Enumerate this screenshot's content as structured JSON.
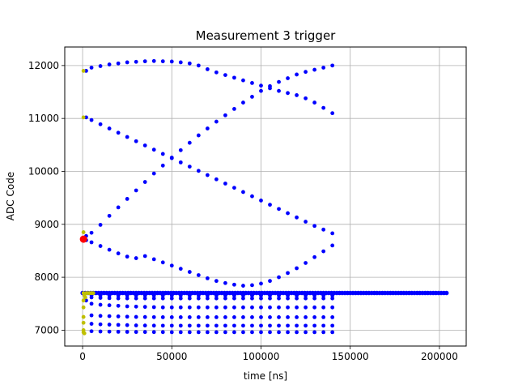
{
  "chart_data": {
    "type": "scatter",
    "title": "Measurement 3 trigger",
    "xlabel": "time [ns]",
    "ylabel": "ADC Code",
    "xlim": [
      -10000,
      215000
    ],
    "ylim": [
      6700,
      12350
    ],
    "xticks": [
      0,
      50000,
      100000,
      150000,
      200000
    ],
    "yticks": [
      7000,
      8000,
      9000,
      10000,
      11000,
      12000
    ],
    "grid": true,
    "colors": {
      "main": "#0000ff",
      "start": "#bfbf00",
      "marker": "#ff0000",
      "grid": "#b0b0b0"
    },
    "series": [
      {
        "marker": "dot",
        "color": "#0000ff",
        "points": [
          [
            2000,
            11900
          ],
          [
            5000,
            11960
          ],
          [
            10000,
            11990
          ],
          [
            15000,
            12020
          ],
          [
            20000,
            12040
          ],
          [
            25000,
            12060
          ],
          [
            30000,
            12070
          ],
          [
            35000,
            12080
          ],
          [
            40000,
            12085
          ],
          [
            45000,
            12080
          ],
          [
            50000,
            12075
          ],
          [
            55000,
            12060
          ],
          [
            60000,
            12040
          ],
          [
            65000,
            12000
          ],
          [
            70000,
            11930
          ],
          [
            75000,
            11870
          ],
          [
            80000,
            11820
          ],
          [
            85000,
            11770
          ],
          [
            90000,
            11720
          ],
          [
            95000,
            11670
          ],
          [
            100000,
            11620
          ],
          [
            105000,
            11570
          ],
          [
            110000,
            11520
          ],
          [
            115000,
            11480
          ],
          [
            120000,
            11440
          ],
          [
            125000,
            11380
          ],
          [
            130000,
            11300
          ],
          [
            135000,
            11200
          ],
          [
            140000,
            11100
          ],
          [
            2000,
            11020
          ],
          [
            5000,
            10970
          ],
          [
            10000,
            10890
          ],
          [
            15000,
            10810
          ],
          [
            20000,
            10730
          ],
          [
            25000,
            10650
          ],
          [
            30000,
            10570
          ],
          [
            35000,
            10490
          ],
          [
            40000,
            10410
          ],
          [
            45000,
            10330
          ],
          [
            50000,
            10250
          ],
          [
            55000,
            10170
          ],
          [
            60000,
            10090
          ],
          [
            65000,
            10010
          ],
          [
            70000,
            9930
          ],
          [
            75000,
            9850
          ],
          [
            80000,
            9770
          ],
          [
            85000,
            9690
          ],
          [
            90000,
            9610
          ],
          [
            95000,
            9530
          ],
          [
            100000,
            9450
          ],
          [
            105000,
            9370
          ],
          [
            110000,
            9290
          ],
          [
            115000,
            9210
          ],
          [
            120000,
            9130
          ],
          [
            125000,
            9050
          ],
          [
            130000,
            8970
          ],
          [
            135000,
            8900
          ],
          [
            140000,
            8830
          ],
          [
            2000,
            8780
          ],
          [
            5000,
            8840
          ],
          [
            10000,
            8990
          ],
          [
            15000,
            9160
          ],
          [
            20000,
            9320
          ],
          [
            25000,
            9480
          ],
          [
            30000,
            9640
          ],
          [
            35000,
            9800
          ],
          [
            40000,
            9960
          ],
          [
            45000,
            10110
          ],
          [
            50000,
            10260
          ],
          [
            55000,
            10400
          ],
          [
            60000,
            10540
          ],
          [
            65000,
            10680
          ],
          [
            70000,
            10810
          ],
          [
            75000,
            10940
          ],
          [
            80000,
            11060
          ],
          [
            85000,
            11180
          ],
          [
            90000,
            11300
          ],
          [
            95000,
            11410
          ],
          [
            100000,
            11520
          ],
          [
            105000,
            11610
          ],
          [
            110000,
            11690
          ],
          [
            115000,
            11760
          ],
          [
            120000,
            11830
          ],
          [
            125000,
            11880
          ],
          [
            130000,
            11920
          ],
          [
            135000,
            11960
          ],
          [
            140000,
            12000
          ],
          [
            2000,
            8700
          ],
          [
            5000,
            8660
          ],
          [
            10000,
            8590
          ],
          [
            15000,
            8520
          ],
          [
            20000,
            8450
          ],
          [
            25000,
            8390
          ],
          [
            30000,
            8360
          ],
          [
            35000,
            8400
          ],
          [
            40000,
            8340
          ],
          [
            45000,
            8280
          ],
          [
            50000,
            8220
          ],
          [
            55000,
            8160
          ],
          [
            60000,
            8100
          ],
          [
            65000,
            8040
          ],
          [
            70000,
            7980
          ],
          [
            75000,
            7930
          ],
          [
            80000,
            7890
          ],
          [
            85000,
            7860
          ],
          [
            90000,
            7840
          ],
          [
            95000,
            7850
          ],
          [
            100000,
            7880
          ],
          [
            105000,
            7930
          ],
          [
            110000,
            8000
          ],
          [
            115000,
            8080
          ],
          [
            120000,
            8170
          ],
          [
            125000,
            8270
          ],
          [
            130000,
            8380
          ],
          [
            135000,
            8490
          ],
          [
            140000,
            8600
          ],
          [
            2000,
            7560
          ],
          [
            5000,
            7500
          ],
          [
            10000,
            7480
          ],
          [
            15000,
            7470
          ],
          [
            20000,
            7460
          ],
          [
            25000,
            7450
          ],
          [
            30000,
            7445
          ],
          [
            35000,
            7440
          ],
          [
            40000,
            7435
          ],
          [
            45000,
            7430
          ],
          [
            50000,
            7430
          ],
          [
            55000,
            7430
          ],
          [
            60000,
            7430
          ],
          [
            65000,
            7430
          ],
          [
            70000,
            7430
          ],
          [
            75000,
            7430
          ],
          [
            80000,
            7430
          ],
          [
            85000,
            7430
          ],
          [
            90000,
            7430
          ],
          [
            95000,
            7430
          ],
          [
            100000,
            7430
          ],
          [
            105000,
            7430
          ],
          [
            110000,
            7430
          ],
          [
            115000,
            7430
          ],
          [
            120000,
            7430
          ],
          [
            125000,
            7430
          ],
          [
            130000,
            7430
          ],
          [
            135000,
            7430
          ],
          [
            140000,
            7430
          ],
          [
            5000,
            7280
          ],
          [
            10000,
            7270
          ],
          [
            15000,
            7265
          ],
          [
            20000,
            7260
          ],
          [
            25000,
            7255
          ],
          [
            30000,
            7250
          ],
          [
            35000,
            7248
          ],
          [
            40000,
            7246
          ],
          [
            45000,
            7245
          ],
          [
            50000,
            7245
          ],
          [
            55000,
            7245
          ],
          [
            60000,
            7245
          ],
          [
            65000,
            7245
          ],
          [
            70000,
            7245
          ],
          [
            75000,
            7245
          ],
          [
            80000,
            7245
          ],
          [
            85000,
            7245
          ],
          [
            90000,
            7245
          ],
          [
            95000,
            7245
          ],
          [
            100000,
            7245
          ],
          [
            105000,
            7245
          ],
          [
            110000,
            7245
          ],
          [
            115000,
            7245
          ],
          [
            120000,
            7245
          ],
          [
            125000,
            7245
          ],
          [
            130000,
            7245
          ],
          [
            135000,
            7245
          ],
          [
            140000,
            7245
          ],
          [
            5000,
            7120
          ],
          [
            10000,
            7110
          ],
          [
            15000,
            7105
          ],
          [
            20000,
            7100
          ],
          [
            25000,
            7095
          ],
          [
            30000,
            7090
          ],
          [
            35000,
            7088
          ],
          [
            40000,
            7086
          ],
          [
            45000,
            7085
          ],
          [
            50000,
            7085
          ],
          [
            55000,
            7085
          ],
          [
            60000,
            7085
          ],
          [
            65000,
            7085
          ],
          [
            70000,
            7085
          ],
          [
            75000,
            7085
          ],
          [
            80000,
            7085
          ],
          [
            85000,
            7085
          ],
          [
            90000,
            7085
          ],
          [
            95000,
            7085
          ],
          [
            100000,
            7085
          ],
          [
            105000,
            7085
          ],
          [
            110000,
            7085
          ],
          [
            115000,
            7085
          ],
          [
            120000,
            7085
          ],
          [
            125000,
            7085
          ],
          [
            130000,
            7085
          ],
          [
            135000,
            7085
          ],
          [
            140000,
            7085
          ],
          [
            5000,
            6980
          ],
          [
            10000,
            6975
          ],
          [
            15000,
            6972
          ],
          [
            20000,
            6970
          ],
          [
            25000,
            6968
          ],
          [
            30000,
            6966
          ],
          [
            35000,
            6965
          ],
          [
            40000,
            6964
          ],
          [
            45000,
            6963
          ],
          [
            50000,
            6962
          ],
          [
            55000,
            6962
          ],
          [
            60000,
            6962
          ],
          [
            65000,
            6962
          ],
          [
            70000,
            6962
          ],
          [
            75000,
            6962
          ],
          [
            80000,
            6962
          ],
          [
            85000,
            6962
          ],
          [
            90000,
            6962
          ],
          [
            95000,
            6962
          ],
          [
            100000,
            6962
          ],
          [
            105000,
            6962
          ],
          [
            110000,
            6962
          ],
          [
            115000,
            6962
          ],
          [
            120000,
            6962
          ],
          [
            125000,
            6962
          ],
          [
            130000,
            6962
          ],
          [
            135000,
            6962
          ],
          [
            140000,
            6962
          ],
          [
            5000,
            7620
          ],
          [
            10000,
            7610
          ],
          [
            15000,
            7605
          ],
          [
            20000,
            7600
          ],
          [
            25000,
            7600
          ],
          [
            30000,
            7600
          ],
          [
            35000,
            7600
          ],
          [
            40000,
            7600
          ],
          [
            45000,
            7600
          ],
          [
            50000,
            7600
          ],
          [
            55000,
            7600
          ],
          [
            60000,
            7600
          ],
          [
            65000,
            7600
          ],
          [
            70000,
            7600
          ],
          [
            75000,
            7600
          ],
          [
            80000,
            7600
          ],
          [
            85000,
            7600
          ],
          [
            90000,
            7600
          ],
          [
            95000,
            7600
          ],
          [
            100000,
            7600
          ],
          [
            105000,
            7600
          ],
          [
            110000,
            7600
          ],
          [
            115000,
            7600
          ],
          [
            120000,
            7600
          ],
          [
            125000,
            7600
          ],
          [
            130000,
            7600
          ],
          [
            135000,
            7600
          ],
          [
            140000,
            7600
          ],
          [
            5000,
            7660
          ],
          [
            10000,
            7655
          ],
          [
            15000,
            7655
          ],
          [
            20000,
            7655
          ],
          [
            25000,
            7655
          ],
          [
            30000,
            7655
          ],
          [
            35000,
            7655
          ],
          [
            40000,
            7655
          ],
          [
            45000,
            7655
          ],
          [
            50000,
            7655
          ],
          [
            55000,
            7655
          ],
          [
            60000,
            7655
          ],
          [
            65000,
            7655
          ],
          [
            70000,
            7655
          ],
          [
            75000,
            7655
          ],
          [
            80000,
            7655
          ],
          [
            85000,
            7655
          ],
          [
            90000,
            7655
          ],
          [
            95000,
            7655
          ],
          [
            100000,
            7655
          ],
          [
            105000,
            7655
          ],
          [
            110000,
            7655
          ],
          [
            115000,
            7655
          ],
          [
            120000,
            7655
          ],
          [
            125000,
            7655
          ],
          [
            130000,
            7655
          ],
          [
            135000,
            7655
          ],
          [
            140000,
            7655
          ]
        ],
        "bands": [
          {
            "y": 7700,
            "x_from": 0,
            "x_to": 204000
          },
          {
            "y": 7705,
            "x_from": 0,
            "x_to": 204000
          }
        ]
      },
      {
        "marker": "dot",
        "color": "#bfbf00",
        "points": [
          [
            500,
            11900
          ],
          [
            500,
            11020
          ],
          [
            500,
            8850
          ],
          [
            500,
            7700
          ],
          [
            1000,
            7660
          ],
          [
            1500,
            7620
          ],
          [
            2000,
            7700
          ],
          [
            3000,
            7700
          ],
          [
            4000,
            7700
          ],
          [
            5000,
            7700
          ],
          [
            6000,
            7700
          ],
          [
            500,
            7560
          ],
          [
            500,
            7430
          ],
          [
            500,
            7250
          ],
          [
            500,
            7140
          ],
          [
            500,
            7000
          ],
          [
            500,
            6960
          ],
          [
            1000,
            6940
          ]
        ]
      },
      {
        "marker": "large-dot",
        "color": "#ff0000",
        "points": [
          [
            500,
            8720
          ]
        ]
      }
    ]
  }
}
